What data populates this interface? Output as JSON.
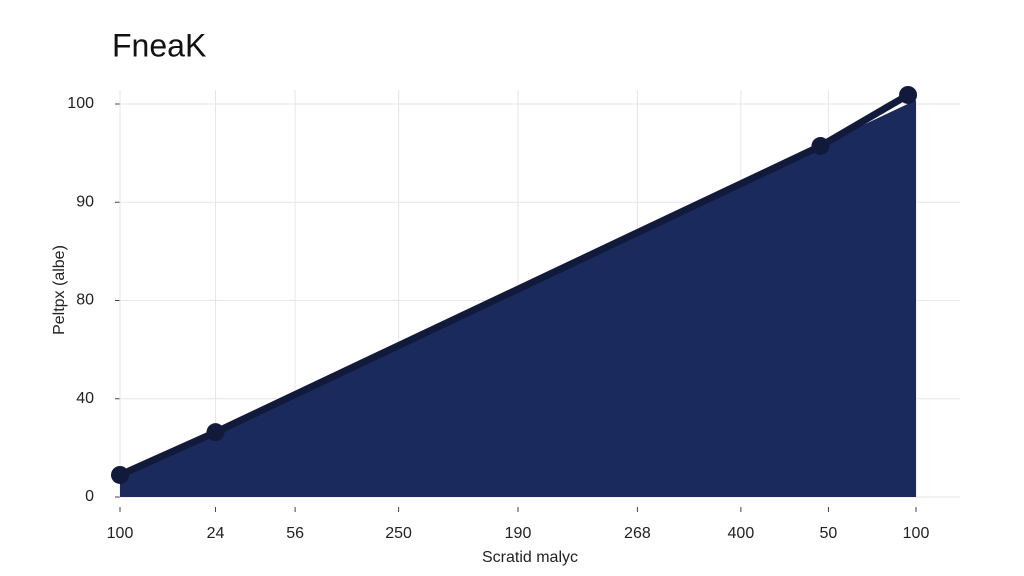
{
  "chart_data": {
    "type": "line",
    "title": "FneaK",
    "x_label": "Scratid malyc",
    "y_label": "Peltpx (albe)",
    "xlim": [
      0,
      100
    ],
    "ylim": [
      0,
      100
    ],
    "xticks": [
      {
        "value": 0,
        "label": "100"
      },
      {
        "value": 12,
        "label": "24"
      },
      {
        "value": 22,
        "label": "56"
      },
      {
        "value": 35,
        "label": "250"
      },
      {
        "value": 50,
        "label": "190"
      },
      {
        "value": 65,
        "label": "268"
      },
      {
        "value": 78,
        "label": "400"
      },
      {
        "value": 89,
        "label": "50"
      },
      100
    ],
    "yticks": [
      0,
      {
        "value": 25,
        "label": "40"
      },
      {
        "value": 50,
        "label": "80"
      },
      {
        "value": 75,
        "label": "90"
      },
      100
    ],
    "grid": true,
    "area": {
      "color": "#1b2a5c",
      "x": [
        0,
        100
      ],
      "values": [
        5.6,
        101
      ]
    },
    "series": [
      {
        "color": "#111a3a",
        "x": [
          0,
          12,
          88,
          99
        ],
        "values": [
          5.6,
          16.5,
          89.3,
          102.3
        ]
      }
    ]
  }
}
